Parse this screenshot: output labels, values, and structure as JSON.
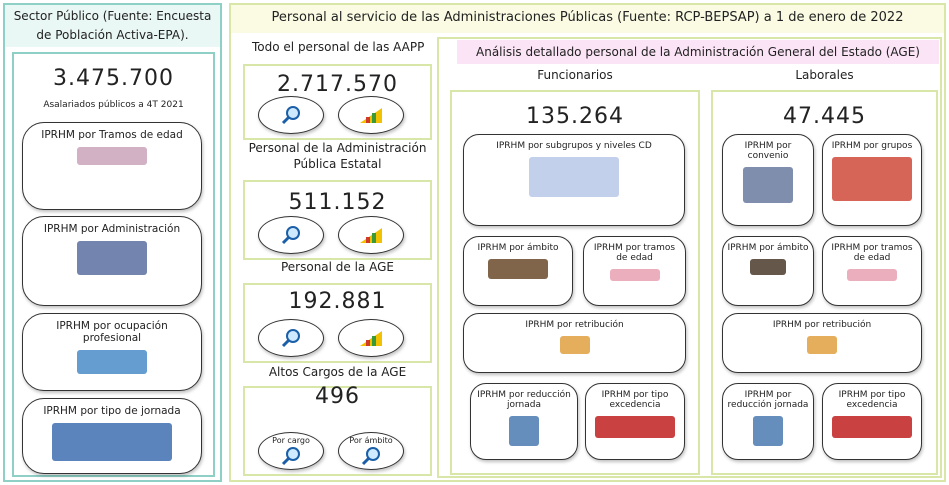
{
  "sector_publico": {
    "title": "Sector Público (Fuente: Encuesta de Población Activa-EPA).",
    "total": "3.475.700",
    "total_label": "Asalariados públicos a 4T 2021",
    "buttons": [
      "IPRHM por Tramos de edad",
      "IPRHM por Administración",
      "IPRHM por ocupación profesional",
      "IPRHM por tipo de jornada"
    ]
  },
  "aapp": {
    "title": "Personal al servicio de las Administraciones Públicas (Fuente: RCP-BEPSAP) a 1 de enero de 2022",
    "groups": [
      {
        "label": "Todo el personal de las AAPP",
        "total": "2.717.570"
      },
      {
        "label": "Personal de la Administración Pública Estatal",
        "total": "511.152"
      },
      {
        "label": "Personal de la AGE",
        "total": "192.881"
      },
      {
        "label": "Altos Cargos de la AGE",
        "total": "496",
        "buttons": [
          "Por cargo",
          "Por ámbito"
        ]
      }
    ],
    "age": {
      "title": "Análisis detallado personal de la Administración General del Estado (AGE)",
      "funcionarios": {
        "title": "Funcionarios",
        "total": "135.264",
        "buttons": [
          "IPRHM por subgrupos y niveles CD",
          "IPRHM por ámbito",
          "IPRHM por tramos de edad",
          "IPRHM por retribución",
          "IPRHM por reducción jornada",
          "IPRHM por tipo excedencia"
        ]
      },
      "laborales": {
        "title": "Laborales",
        "total": "47.445",
        "buttons": [
          "IPRHM por convenio",
          "IPRHM por grupos",
          "IPRHM por ámbito",
          "IPRHM por tramos de edad",
          "IPRHM por retribución",
          "IPRHM por reducción jornada",
          "IPRHM por tipo excedencia"
        ]
      }
    }
  }
}
